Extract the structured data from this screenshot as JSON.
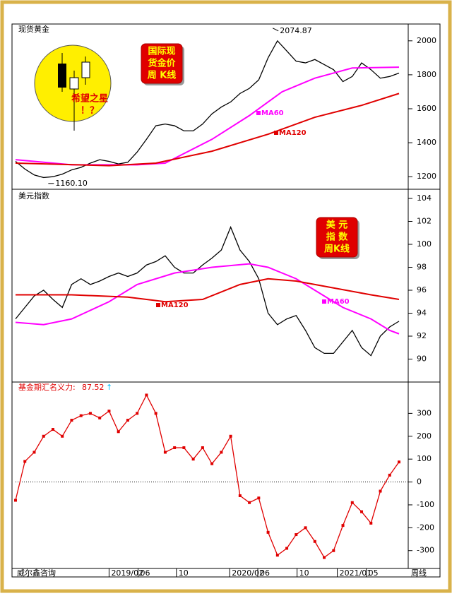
{
  "chart_data": [
    {
      "type": "line",
      "title": "现货黄金",
      "x": [
        0,
        1,
        2,
        3,
        4,
        5,
        6,
        7,
        8,
        9,
        10,
        11,
        12,
        13,
        14,
        15,
        16,
        17,
        18,
        19,
        20,
        21,
        22,
        23,
        24,
        25,
        26,
        27,
        28,
        29,
        30,
        31,
        32,
        33,
        34,
        35,
        36,
        37,
        38,
        39,
        40,
        41
      ],
      "series": [
        {
          "color": "#000000",
          "values": [
            1290,
            1245,
            1210,
            1195,
            1200,
            1215,
            1240,
            1255,
            1280,
            1300,
            1290,
            1275,
            1285,
            1345,
            1420,
            1500,
            1510,
            1500,
            1470,
            1470,
            1510,
            1570,
            1610,
            1640,
            1690,
            1720,
            1770,
            1900,
            2000,
            1940,
            1880,
            1870,
            1890,
            1860,
            1830,
            1760,
            1790,
            1870,
            1830,
            1780,
            1790,
            1810
          ]
        },
        {
          "name": "MA60",
          "color": "#ff00ff",
          "x": [
            0,
            6,
            13,
            16,
            21,
            25,
            28.5,
            32,
            36,
            41
          ],
          "values": [
            1300,
            1270,
            1270,
            1280,
            1420,
            1560,
            1700,
            1780,
            1840,
            1845
          ]
        },
        {
          "name": "MA120",
          "color": "#e00000",
          "x": [
            0,
            10,
            15,
            21,
            27,
            32,
            37,
            41
          ],
          "values": [
            1280,
            1265,
            1280,
            1350,
            1450,
            1550,
            1620,
            1690
          ]
        }
      ],
      "extremes": [
        {
          "x": 27.5,
          "value": 2074.87
        },
        {
          "x": 3.5,
          "value": 1160.1,
          "label": "1160.10"
        }
      ],
      "annotation": [
        "国际现",
        "货金价",
        "周 K线"
      ],
      "xlim": [
        0,
        41
      ],
      "ylim": [
        1126,
        2099
      ],
      "yticks": [
        1200,
        1400,
        1600,
        1800,
        2000
      ]
    },
    {
      "type": "line",
      "title": "美元指数",
      "x": [
        0,
        1,
        2,
        3,
        4,
        5,
        6,
        7,
        8,
        9,
        10,
        11,
        12,
        13,
        14,
        15,
        16,
        17,
        18,
        19,
        20,
        21,
        22,
        23,
        24,
        25,
        26,
        27,
        28,
        29,
        30,
        31,
        32,
        33,
        34,
        35,
        36,
        37,
        38,
        39,
        40,
        41
      ],
      "series": [
        {
          "color": "#000000",
          "values": [
            93.5,
            94.5,
            95.5,
            96,
            95.2,
            94.5,
            96.5,
            97,
            96.5,
            96.8,
            97.2,
            97.5,
            97.2,
            97.5,
            98.2,
            98.5,
            99,
            98,
            97.5,
            97.5,
            98.2,
            98.8,
            99.5,
            101.5,
            99.5,
            98.5,
            97,
            94,
            93,
            93.5,
            93.8,
            92.5,
            91,
            90.5,
            90.5,
            91.5,
            92.5,
            91,
            90.3,
            92,
            92.8,
            93.3
          ]
        },
        {
          "name": "MA60",
          "color": "#ff00ff",
          "x": [
            0,
            3,
            6,
            10,
            13,
            17,
            21,
            25,
            27,
            30,
            33,
            35,
            38,
            40,
            41
          ],
          "values": [
            93.2,
            93,
            93.5,
            95,
            96.5,
            97.5,
            98,
            98.3,
            98,
            97,
            95.5,
            94.5,
            93.5,
            92.5,
            92.2
          ]
        },
        {
          "name": "MA120",
          "color": "#e00000",
          "x": [
            0,
            6,
            12,
            16,
            20,
            24,
            27,
            30,
            34,
            38,
            41
          ],
          "values": [
            95.6,
            95.6,
            95.4,
            95,
            95.2,
            96.5,
            97,
            96.8,
            96.2,
            95.6,
            95.2
          ]
        }
      ],
      "annotation": [
        "美 元",
        "指 数",
        "周K线"
      ],
      "xlim": [
        0,
        41
      ],
      "ylim": [
        88,
        104.8
      ],
      "yticks": [
        90,
        92,
        94,
        96,
        98,
        100,
        102,
        104
      ]
    },
    {
      "type": "line",
      "title": "基金期汇名义力:",
      "x": [
        0,
        1,
        2,
        3,
        4,
        5,
        6,
        7,
        8,
        9,
        10,
        11,
        12,
        13,
        14,
        15,
        16,
        17,
        18,
        19,
        20,
        21,
        22,
        23,
        24,
        25,
        26,
        27,
        28,
        29,
        30,
        31,
        32,
        33,
        34,
        35,
        36,
        37,
        38,
        39,
        40,
        41
      ],
      "series": [
        {
          "color": "#e00000",
          "values": [
            -80,
            90,
            130,
            200,
            230,
            200,
            270,
            290,
            300,
            280,
            310,
            220,
            270,
            300,
            380,
            300,
            130,
            150,
            150,
            100,
            150,
            80,
            130,
            200,
            -60,
            -90,
            -70,
            -220,
            -320,
            -290,
            -230,
            -200,
            -260,
            -330,
            -300,
            -190,
            -90,
            -130,
            -180,
            -40,
            30,
            87.52
          ]
        }
      ],
      "xlim": [
        0,
        41
      ],
      "ylim": [
        -378,
        437
      ],
      "yticks": [
        -300,
        -200,
        -100,
        0,
        100,
        200,
        300
      ],
      "xticks": [
        {
          "value": 10,
          "label": "2019/02"
        },
        {
          "value": 13.1,
          "label": "06"
        },
        {
          "value": 17.2,
          "label": "10"
        },
        {
          "value": 22.9,
          "label": "2020/02"
        },
        {
          "value": 25.9,
          "label": "06"
        },
        {
          "value": 30.1,
          "label": "10"
        },
        {
          "value": 34.4,
          "label": "2021/01"
        },
        {
          "value": 37.5,
          "label": "05"
        }
      ]
    }
  ],
  "logo": {
    "name": "希望之星",
    "mark": "！？"
  },
  "footer": {
    "source": "威尔鑫咨询",
    "period": "周线"
  }
}
